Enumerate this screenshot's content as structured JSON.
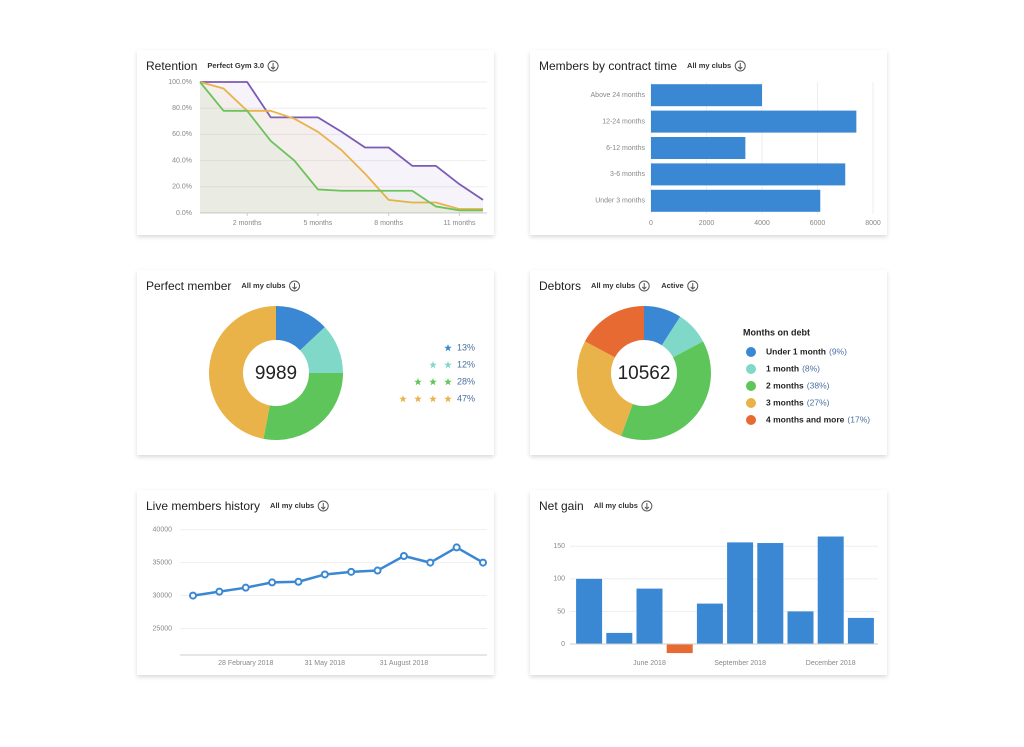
{
  "chart_data": [
    {
      "type": "line",
      "title": "Retention",
      "filters": [
        "Perfect Gym 3.0"
      ],
      "x": [
        0,
        1,
        2,
        3,
        4,
        5,
        6,
        7,
        8,
        9,
        10,
        11,
        12
      ],
      "series": [
        {
          "color": "#7b5bb5",
          "values": [
            100,
            100,
            100,
            73,
            73,
            73,
            62,
            50,
            50,
            36,
            36,
            22,
            10
          ]
        },
        {
          "color": "#e9b34a",
          "values": [
            100,
            95,
            78,
            78,
            72,
            62,
            48,
            30,
            10,
            8,
            8,
            3,
            3
          ]
        },
        {
          "color": "#6cc35a",
          "values": [
            100,
            78,
            78,
            55,
            40,
            18,
            17,
            17,
            17,
            17,
            5,
            2,
            2
          ]
        }
      ],
      "xlim": [
        0,
        12
      ],
      "xticks": [
        {
          "value": 2,
          "label": "2 months"
        },
        {
          "value": 5,
          "label": "5 months"
        },
        {
          "value": 8,
          "label": "8 months"
        },
        {
          "value": 11,
          "label": "11 months"
        }
      ],
      "ylim": [
        0,
        100
      ],
      "yticks": [
        {
          "value": 0,
          "label": "0.0%"
        },
        {
          "value": 20,
          "label": "20.0%"
        },
        {
          "value": 40,
          "label": "40.0%"
        },
        {
          "value": 60,
          "label": "60.0%"
        },
        {
          "value": 80,
          "label": "80.0%"
        },
        {
          "value": 100,
          "label": "100.0%"
        }
      ],
      "grid": true,
      "fill": true
    },
    {
      "type": "barh",
      "title": "Members by contract time",
      "filters": [
        "All my clubs"
      ],
      "categories": [
        "Above 24 months",
        "12-24 months",
        "6-12 months",
        "3-6 months",
        "Under 3 months"
      ],
      "values": [
        4000,
        7400,
        3400,
        7000,
        6100
      ],
      "color": "#3a87d4",
      "xlim": [
        0,
        8000
      ],
      "xticks": [
        0,
        2000,
        4000,
        6000,
        8000
      ],
      "grid": true
    },
    {
      "type": "donut",
      "title": "Perfect member",
      "filters": [
        "All my clubs"
      ],
      "total": 9989,
      "values": [
        13,
        12,
        28,
        47
      ],
      "value_labels": [
        "13%",
        "12%",
        "28%",
        "47%"
      ],
      "stars": [
        1,
        2,
        3,
        4
      ],
      "colors": [
        "#3a87d4",
        "#7fd8c8",
        "#5ec55a",
        "#e9b34a"
      ]
    },
    {
      "type": "donut",
      "title": "Debtors",
      "filters": [
        "All my clubs",
        "Active"
      ],
      "total": 10562,
      "legend_title": "Months on debt",
      "categories": [
        "Under 1 month",
        "1 month",
        "2 months",
        "3 months",
        "4 months and more"
      ],
      "values": [
        9,
        8,
        38,
        27,
        17
      ],
      "value_labels": [
        "(9%)",
        "(8%)",
        "(38%)",
        "(27%)",
        "(17%)"
      ],
      "colors": [
        "#3a87d4",
        "#7fd8c8",
        "#5ec55a",
        "#e9b34a",
        "#e86a33"
      ]
    },
    {
      "type": "line",
      "title": "Live members history",
      "filters": [
        "All my clubs"
      ],
      "categories": [
        null,
        null,
        "28 February 2018",
        null,
        null,
        "31 May 2018",
        null,
        null,
        "31 August 2018",
        null,
        null,
        null
      ],
      "series": [
        {
          "color": "#3a87d4",
          "values": [
            30000,
            30600,
            31200,
            32000,
            32100,
            33200,
            33600,
            33800,
            36000,
            35000,
            37300,
            35000
          ]
        }
      ],
      "ylim": [
        21000,
        41000
      ],
      "yticks": [
        25000,
        30000,
        35000,
        40000
      ],
      "grid": true,
      "markers": true
    },
    {
      "type": "bar",
      "title": "Net gain",
      "filters": [
        "All my clubs"
      ],
      "categories": [
        null,
        null,
        "June 2018",
        null,
        null,
        "September 2018",
        null,
        null,
        "December 2018",
        null
      ],
      "values": [
        100,
        17,
        85,
        -14,
        62,
        156,
        155,
        50,
        165,
        40
      ],
      "color": "#3a87d4",
      "negative_color": "#e86a33",
      "ylim": [
        -20,
        175
      ],
      "yticks": [
        0,
        50,
        100,
        150
      ],
      "grid": true
    }
  ]
}
